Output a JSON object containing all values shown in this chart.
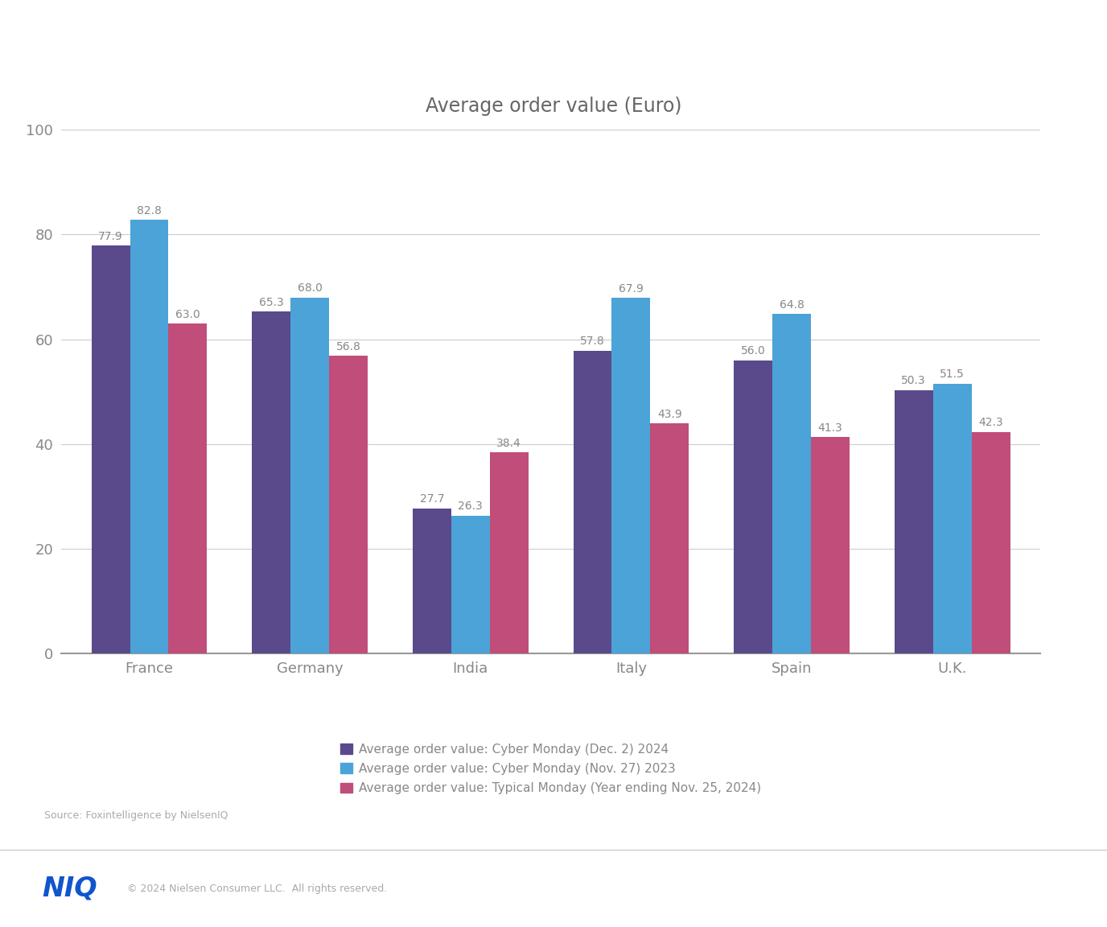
{
  "title": "Average order value (Euro)",
  "categories": [
    "France",
    "Germany",
    "India",
    "Italy",
    "Spain",
    "U.K."
  ],
  "series": [
    {
      "label": "Average order value: Cyber Monday (Dec. 2) 2024",
      "color": "#5B4A8B",
      "values": [
        77.9,
        65.3,
        27.7,
        57.8,
        56.0,
        50.3
      ]
    },
    {
      "label": "Average order value: Cyber Monday (Nov. 27) 2023",
      "color": "#4BA3D8",
      "values": [
        82.8,
        68.0,
        26.3,
        67.9,
        64.8,
        51.5
      ]
    },
    {
      "label": "Average order value: Typical Monday (Year ending Nov. 25, 2024)",
      "color": "#C04D7A",
      "values": [
        63.0,
        56.8,
        38.4,
        43.9,
        41.3,
        42.3
      ]
    }
  ],
  "ylim": [
    0,
    100
  ],
  "yticks": [
    0,
    20,
    40,
    60,
    80,
    100
  ],
  "bar_width": 0.24,
  "background_color": "#FFFFFF",
  "plot_bg_color": "#FFFFFF",
  "grid_color": "#CCCCCC",
  "axis_color": "#444444",
  "tick_color": "#888888",
  "title_color": "#666666",
  "title_fontsize": 17,
  "tick_fontsize": 13,
  "legend_fontsize": 11,
  "value_label_fontsize": 10,
  "value_label_color": "#888888",
  "source_text": "Source: Foxintelligence by NielsenIQ",
  "footer_text": "© 2024 Nielsen Consumer LLC.  All rights reserved.",
  "niq_text": "NIQ",
  "footer_bg_color": "#F5F5F5",
  "footer_line_color": "#CCCCCC",
  "separator_line_color": "#CCCCCC"
}
